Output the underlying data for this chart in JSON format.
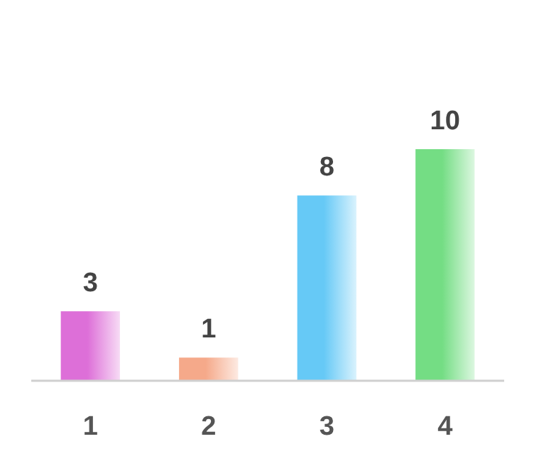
{
  "chart_data": {
    "type": "bar",
    "categories": [
      "1",
      "2",
      "3",
      "4"
    ],
    "values": [
      3,
      1,
      8,
      10
    ],
    "colors": [
      "#dd6fd8",
      "#f5a98a",
      "#66c9f6",
      "#74dd84"
    ],
    "data_labels": true
  }
}
